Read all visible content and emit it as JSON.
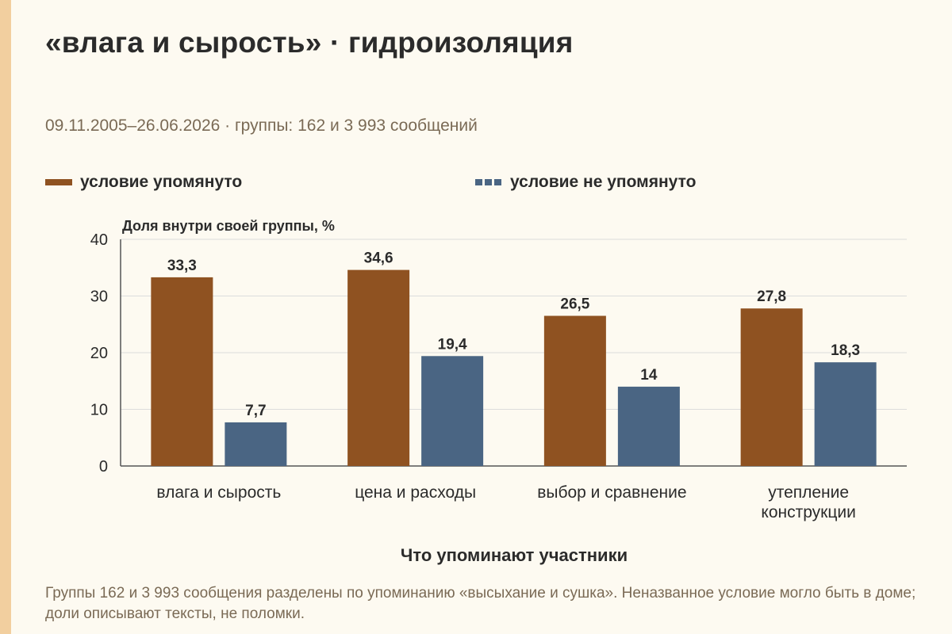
{
  "title": "«влага и сырость» · гидроизоляция",
  "subtitle": "09.11.2005–26.06.2026 · группы: 162 и 3 993 сообщений",
  "footnote": "Группы 162 и 3 993 сообщения разделены по упоминанию «высыхание и сушка». Неназванное условие могло быть в доме; доли описывают тексты, не поломки.",
  "colors": {
    "series1": "#8f5221",
    "series2": "#4a6583",
    "background": "#fdfaf1",
    "accent_strip": "#f2cf9f"
  },
  "chart_data": {
    "type": "bar",
    "categories": [
      [
        "влага и сырость"
      ],
      [
        "цена и расходы"
      ],
      [
        "выбор и сравнение"
      ],
      [
        "утепление",
        "конструкции"
      ]
    ],
    "series": [
      {
        "name": "условие упомянуто",
        "values": [
          33.3,
          34.6,
          26.5,
          27.8
        ],
        "labels": [
          "33,3",
          "34,6",
          "26,5",
          "27,8"
        ]
      },
      {
        "name": "условие не упомянуто",
        "values": [
          7.7,
          19.4,
          14,
          18.3
        ],
        "labels": [
          "7,7",
          "19,4",
          "14",
          "18,3"
        ]
      }
    ],
    "ylabel": "Доля внутри своей группы, %",
    "xlabel": "Что упоминают участники",
    "ylim": [
      0,
      40
    ],
    "yticks": [
      0,
      10,
      20,
      30,
      40
    ],
    "grid": true,
    "legend_position": "top"
  }
}
